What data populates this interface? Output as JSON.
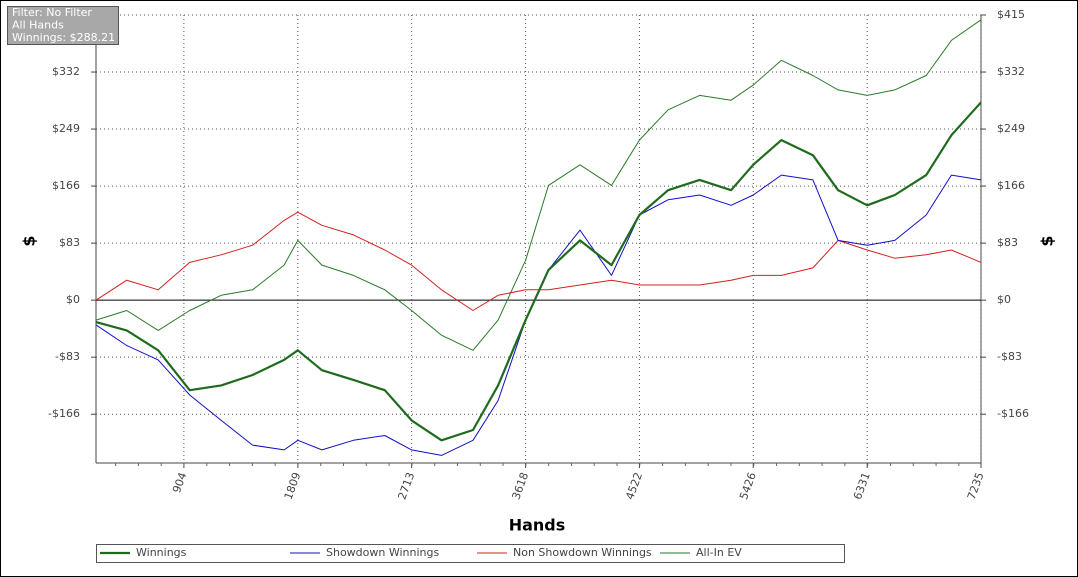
{
  "chart_data": {
    "type": "line",
    "annotations": [
      "Filter: No Filter",
      "All Hands",
      "Winnings: $288.21"
    ],
    "x_label": "Hands",
    "y_label": "$",
    "x": [
      206,
      450,
      700,
      950,
      1200,
      1450,
      1700,
      1809,
      2000,
      2250,
      2500,
      2713,
      2950,
      3200,
      3400,
      3618,
      3800,
      4050,
      4300,
      4522,
      4750,
      5000,
      5250,
      5426,
      5650,
      5900,
      6100,
      6331,
      6550,
      6800,
      7000,
      7235
    ],
    "series": [
      {
        "name": "Winnings",
        "color": "#1e6b1e",
        "width": 2.2,
        "values": [
          -32,
          -44,
          -73,
          -131,
          -124,
          -109,
          -87,
          -73,
          -102,
          -116,
          -131,
          -175,
          -204,
          -189,
          -124,
          -29,
          44,
          87,
          51,
          124,
          160,
          175,
          160,
          197,
          233,
          211,
          160,
          138,
          153,
          182,
          240,
          288
        ]
      },
      {
        "name": "Showdown Winnings",
        "color": "#1010c8",
        "width": 1,
        "values": [
          -36,
          -66,
          -87,
          -138,
          -175,
          -211,
          -218,
          -204,
          -218,
          -204,
          -197,
          -218,
          -226,
          -204,
          -146,
          -29,
          44,
          102,
          36,
          124,
          146,
          153,
          138,
          153,
          182,
          175,
          87,
          80,
          87,
          124,
          182,
          175
        ]
      },
      {
        "name": "Non Showdown Winnings",
        "color": "#d42020",
        "width": 1,
        "values": [
          0,
          29,
          15,
          55,
          66,
          80,
          116,
          128,
          109,
          95,
          73,
          51,
          15,
          -15,
          7,
          15,
          15,
          22,
          29,
          22,
          22,
          22,
          29,
          36,
          36,
          47,
          87,
          73,
          61,
          66,
          73,
          55
        ]
      },
      {
        "name": "All-In EV",
        "color": "#2a7a2a",
        "width": 1,
        "values": [
          -29,
          -15,
          -44,
          -15,
          7,
          15,
          51,
          87,
          51,
          36,
          15,
          -15,
          -51,
          -73,
          -29,
          58,
          167,
          197,
          167,
          233,
          277,
          298,
          291,
          313,
          349,
          327,
          306,
          298,
          306,
          327,
          378,
          408
        ]
      }
    ],
    "xlim": [
      206,
      7235
    ],
    "xticks": [
      904,
      1809,
      2713,
      3618,
      4522,
      5426,
      6331,
      7235
    ],
    "ylim": [
      -237,
      415
    ],
    "yticks": [
      {
        "value": -166,
        "label": "-$166"
      },
      {
        "value": -83,
        "label": "-$83"
      },
      {
        "value": 0,
        "label": "$0"
      },
      {
        "value": 83,
        "label": "$83"
      },
      {
        "value": 166,
        "label": "$166"
      },
      {
        "value": 249,
        "label": "$249"
      },
      {
        "value": 332,
        "label": "$332"
      },
      {
        "value": 415,
        "label": "$415"
      }
    ],
    "grid": true
  }
}
